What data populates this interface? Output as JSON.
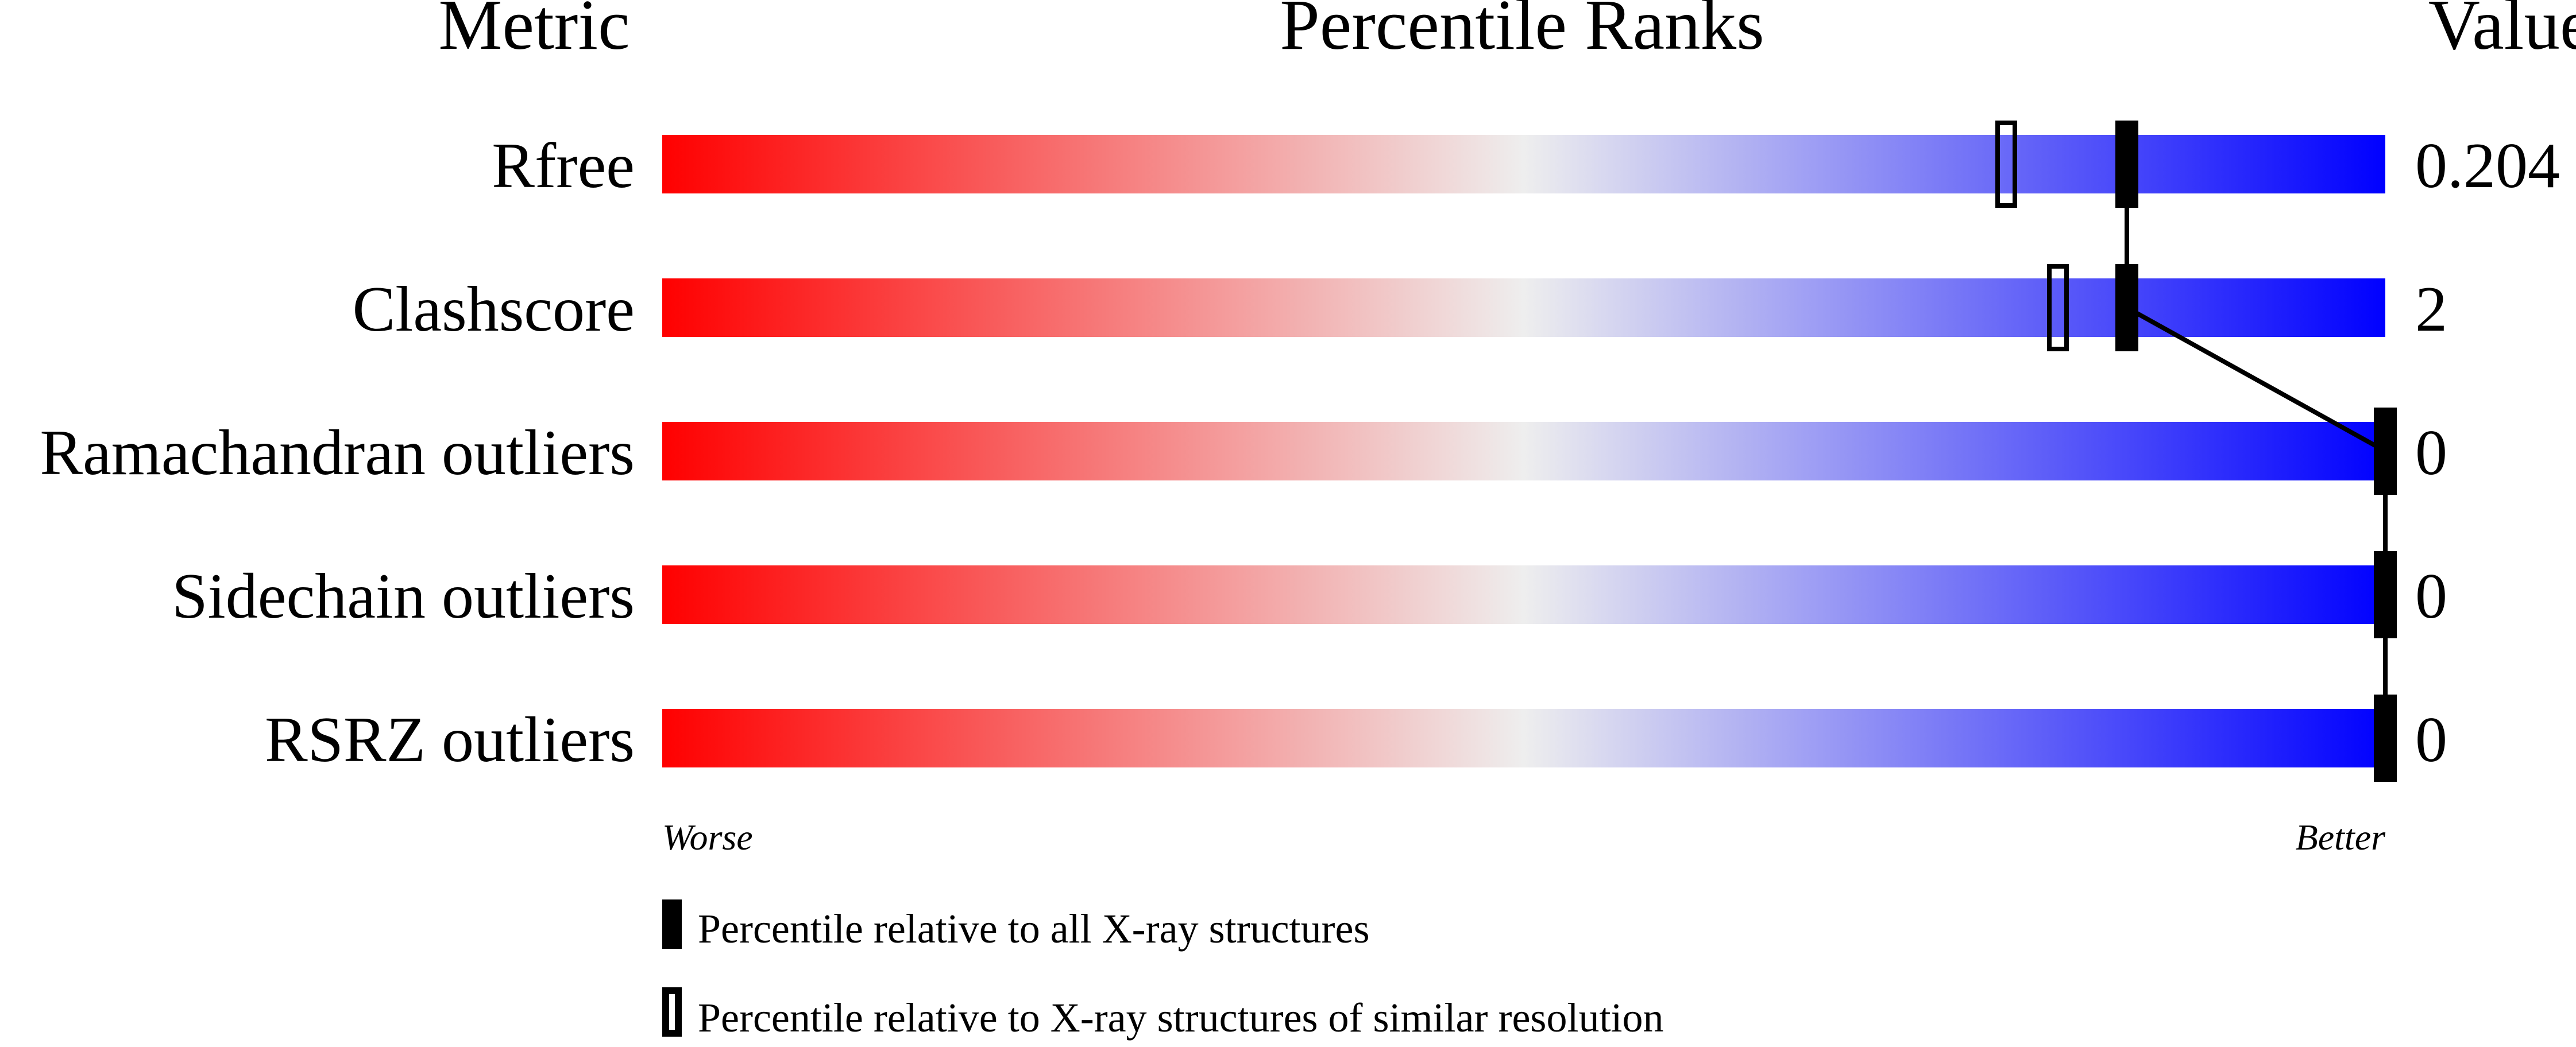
{
  "chart_data": {
    "type": "bar",
    "headers": {
      "metric": "Metric",
      "ranks": "Percentile Ranks",
      "value": "Value"
    },
    "categories": [
      "Rfree",
      "Clashscore",
      "Ramachandran outliers",
      "Sidechain outliers",
      "RSRZ outliers"
    ],
    "values": [
      "0.204",
      "2",
      "0",
      "0",
      "0"
    ],
    "series": [
      {
        "name": "Percentile relative to all X-ray structures",
        "style": "filled",
        "values": [
          85,
          85,
          100,
          100,
          100
        ]
      },
      {
        "name": "Percentile relative to X-ray structures of similar resolution",
        "style": "open",
        "values": [
          78,
          81,
          null,
          null,
          null
        ]
      }
    ],
    "xlim": [
      0,
      100
    ],
    "axis_labels": {
      "left": "Worse",
      "right": "Better"
    },
    "gradient_colors": [
      "#ff0000",
      "#eeeeee",
      "#0000ff"
    ],
    "legend_placement": "bottom-left"
  }
}
